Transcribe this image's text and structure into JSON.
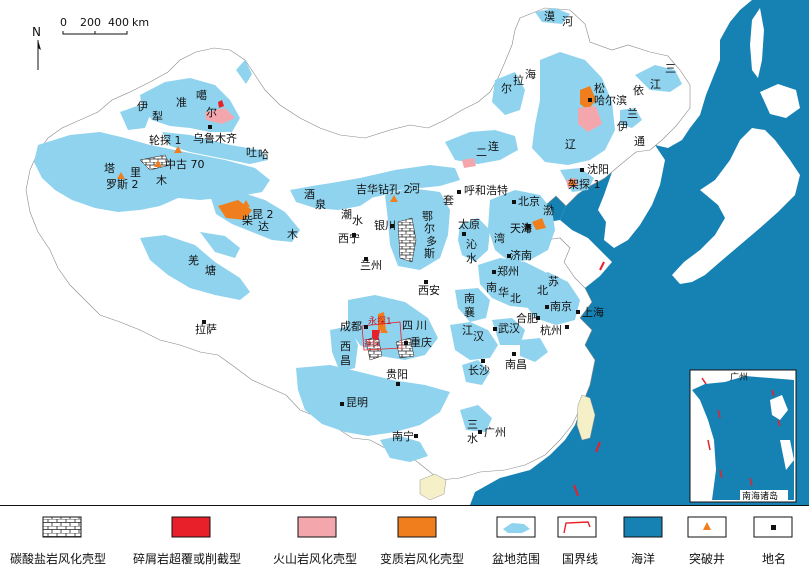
{
  "north_label": "N",
  "scale": {
    "ticks": [
      "0",
      "200",
      "400"
    ],
    "unit": "km"
  },
  "basin_labels": [
    {
      "id": "zhunger-1",
      "text": "准"
    },
    {
      "id": "zhunger-2",
      "text": "噶"
    },
    {
      "id": "zhunger-3",
      "text": "尔"
    },
    {
      "id": "yili-1",
      "text": "伊"
    },
    {
      "id": "yili-2",
      "text": "犁"
    },
    {
      "id": "tuha-1",
      "text": "吐"
    },
    {
      "id": "tuha-2",
      "text": "哈"
    },
    {
      "id": "tarim-1",
      "text": "塔"
    },
    {
      "id": "tarim-2",
      "text": "里"
    },
    {
      "id": "tarim-3",
      "text": "木"
    },
    {
      "id": "chaidamu-1",
      "text": "柴"
    },
    {
      "id": "chaidamu-2",
      "text": "达"
    },
    {
      "id": "chaidamu-3",
      "text": "木"
    },
    {
      "id": "jiuquan-1",
      "text": "酒"
    },
    {
      "id": "jiuquan-2",
      "text": "泉"
    },
    {
      "id": "chaoshui-1",
      "text": "潮"
    },
    {
      "id": "chaoshui-2",
      "text": "水"
    },
    {
      "id": "hetao-1",
      "text": "河"
    },
    {
      "id": "hetao-2",
      "text": "套"
    },
    {
      "id": "ordos-1",
      "text": "鄂"
    },
    {
      "id": "ordos-2",
      "text": "尔"
    },
    {
      "id": "ordos-3",
      "text": "多"
    },
    {
      "id": "ordos-4",
      "text": "斯"
    },
    {
      "id": "erlian-1",
      "text": "二"
    },
    {
      "id": "erlian-2",
      "text": "连"
    },
    {
      "id": "hailar-1",
      "text": "海"
    },
    {
      "id": "hailar-2",
      "text": "拉"
    },
    {
      "id": "hailar-3",
      "text": "尔"
    },
    {
      "id": "songliao-1",
      "text": "松"
    },
    {
      "id": "songliao-2",
      "text": "辽"
    },
    {
      "id": "yitong-1",
      "text": "伊"
    },
    {
      "id": "yitong-2",
      "text": "通"
    },
    {
      "id": "sanjiang-1",
      "text": "三"
    },
    {
      "id": "sanjiang-2",
      "text": "江"
    },
    {
      "id": "mohe-1",
      "text": "漠"
    },
    {
      "id": "mohe-2",
      "text": "河"
    },
    {
      "id": "yilan",
      "text": "依"
    },
    {
      "id": "lan",
      "text": "兰"
    },
    {
      "id": "qinshui-1",
      "text": "沁"
    },
    {
      "id": "qinshui-2",
      "text": "水"
    },
    {
      "id": "bohai-1",
      "text": "渤"
    },
    {
      "id": "bohai-2",
      "text": "海"
    },
    {
      "id": "bohai-3",
      "text": "湾"
    },
    {
      "id": "nanhuabei-1",
      "text": "南"
    },
    {
      "id": "nanhuabei-2",
      "text": "华"
    },
    {
      "id": "nanhuabei-3",
      "text": "北"
    },
    {
      "id": "nanxiang-1",
      "text": "南"
    },
    {
      "id": "nanxiang-2",
      "text": "襄"
    },
    {
      "id": "jianghan-1",
      "text": "江"
    },
    {
      "id": "jianghan-2",
      "text": "汉"
    },
    {
      "id": "subei-1",
      "text": "苏"
    },
    {
      "id": "subei-2",
      "text": "北"
    },
    {
      "id": "sichuan-1",
      "text": "四"
    },
    {
      "id": "sichuan-2",
      "text": "川"
    },
    {
      "id": "xichang-1",
      "text": "西"
    },
    {
      "id": "xichang-2",
      "text": "昌"
    },
    {
      "id": "qiangtang-1",
      "text": "羌"
    },
    {
      "id": "qiangtang-2",
      "text": "塘"
    },
    {
      "id": "sanshui-1",
      "text": "三"
    },
    {
      "id": "sanshui-2",
      "text": "水"
    }
  ],
  "cities": [
    {
      "id": "urumqi",
      "text": "乌鲁木齐"
    },
    {
      "id": "lhasa",
      "text": "拉萨"
    },
    {
      "id": "xining",
      "text": "西宁"
    },
    {
      "id": "lanzhou",
      "text": "兰州"
    },
    {
      "id": "yinchuan",
      "text": "银川"
    },
    {
      "id": "hohhot",
      "text": "呼和浩特"
    },
    {
      "id": "taiyuan",
      "text": "太原"
    },
    {
      "id": "beijing",
      "text": "北京"
    },
    {
      "id": "tianjin",
      "text": "天津"
    },
    {
      "id": "shenyang",
      "text": "沈阳"
    },
    {
      "id": "harbin",
      "text": "哈尔滨"
    },
    {
      "id": "jinan",
      "text": "济南"
    },
    {
      "id": "zhengzhou",
      "text": "郑州"
    },
    {
      "id": "xian",
      "text": "西安"
    },
    {
      "id": "chengdu",
      "text": "成都"
    },
    {
      "id": "chongqing",
      "text": "重庆"
    },
    {
      "id": "guiyang",
      "text": "贵阳"
    },
    {
      "id": "kunming",
      "text": "昆明"
    },
    {
      "id": "nanning",
      "text": "南宁"
    },
    {
      "id": "guangzhou",
      "text": "广州"
    },
    {
      "id": "changsha",
      "text": "长沙"
    },
    {
      "id": "wuhan",
      "text": "武汉"
    },
    {
      "id": "nanchang",
      "text": "南昌"
    },
    {
      "id": "hefei",
      "text": "合肥"
    },
    {
      "id": "nanjing",
      "text": "南京"
    },
    {
      "id": "hangzhou",
      "text": "杭州"
    },
    {
      "id": "shanghai",
      "text": "上海"
    }
  ],
  "wells": [
    {
      "id": "luntan1",
      "text": "轮探 1"
    },
    {
      "id": "zhonggu70",
      "text": "中古 70"
    },
    {
      "id": "luosi2",
      "text": "罗斯 2"
    },
    {
      "id": "kun2",
      "text": "昆 2"
    },
    {
      "id": "jihua2",
      "text": "吉华钻孔 2"
    },
    {
      "id": "jiatan1",
      "text": "架探 1"
    },
    {
      "id": "yongtan1",
      "text": "永探1"
    },
    {
      "id": "penglai",
      "text": "蓬探"
    }
  ],
  "inset": {
    "title": "南海诸岛",
    "top_label": "广州"
  },
  "legend": [
    {
      "id": "carbonate",
      "label": "碳酸盐岩风化壳型",
      "swatch": "brick"
    },
    {
      "id": "clastic",
      "label": "碎屑岩超覆或削截型",
      "swatch": "solid",
      "color": "#e8202a"
    },
    {
      "id": "volcanic",
      "label": "火山岩风化壳型",
      "swatch": "solid",
      "color": "#f4a6ad"
    },
    {
      "id": "metamorphic",
      "label": "变质岩风化壳型",
      "swatch": "solid",
      "color": "#f07e1d"
    },
    {
      "id": "basin",
      "label": "盆地范围",
      "swatch": "basin",
      "color": "#8fd3ee"
    },
    {
      "id": "border",
      "label": "国界线",
      "swatch": "border",
      "color": "#e8202a"
    },
    {
      "id": "ocean",
      "label": "海洋",
      "swatch": "solid",
      "color": "#1681b3"
    },
    {
      "id": "well",
      "label": "突破井",
      "swatch": "triangle",
      "color": "#f07e1d"
    },
    {
      "id": "place",
      "label": "地名",
      "swatch": "square",
      "color": "#111111"
    }
  ],
  "colors": {
    "basin": "#8fd3ee",
    "ocean": "#1681b3",
    "metamorphic": "#f07e1d",
    "volcanic": "#f4a6ad",
    "clastic": "#e8202a"
  }
}
